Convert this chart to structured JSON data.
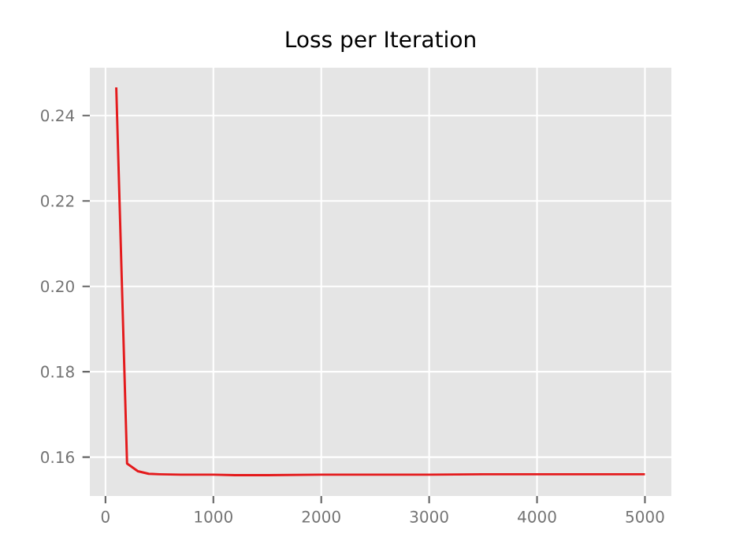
{
  "chart_data": {
    "type": "line",
    "title": "Loss per Iteration",
    "x": [
      100,
      200,
      300,
      400,
      500,
      700,
      1000,
      1200,
      1500,
      2000,
      2500,
      3000,
      3500,
      4000,
      4500,
      5000
    ],
    "series": [
      {
        "color": "#e41a1c",
        "values": [
          0.2466,
          0.1585,
          0.1567,
          0.1561,
          0.156,
          0.1559,
          0.1559,
          0.1558,
          0.1558,
          0.1559,
          0.1559,
          0.1559,
          0.156,
          0.156,
          0.156,
          0.156
        ]
      }
    ],
    "xlim": [
      -145,
      5245
    ],
    "ylim": [
      0.1509,
      0.2512
    ],
    "xticks": [
      0,
      1000,
      2000,
      3000,
      4000,
      5000
    ],
    "yticks": [
      0.16,
      0.18,
      {
        "value": 0.2,
        "label": "0.20"
      },
      0.22,
      0.24
    ],
    "grid": true,
    "marker": "none",
    "line_style": "solid"
  }
}
